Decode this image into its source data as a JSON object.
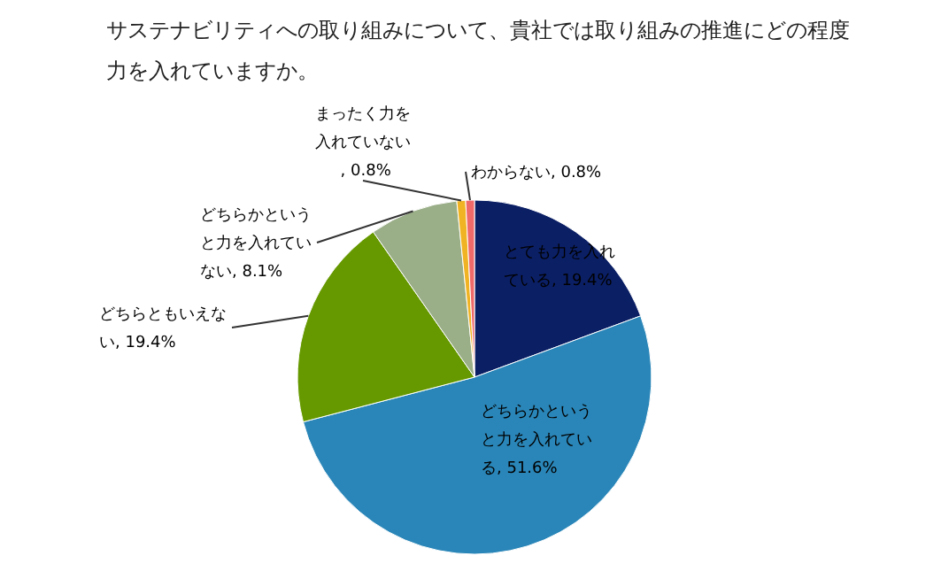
{
  "chart_data": {
    "type": "pie",
    "title": "サステナビリティへの取り組みについて、貴社では取り組みの推進にどの程度力を入れていますか。",
    "categories": [
      "とても力を入れている",
      "どちらかというと力を入れている",
      "どちらともいえない",
      "どちらかというと力を入れていない",
      "まったく力を入れていない",
      "わからない"
    ],
    "values": [
      19.4,
      51.6,
      19.4,
      8.1,
      0.8,
      0.8
    ],
    "colors": [
      "#0b1f65",
      "#2a86b8",
      "#669900",
      "#9aae88",
      "#f0b323",
      "#f06a6a"
    ],
    "value_labels": [
      ", 19.4%",
      ", 51.6%",
      ", 19.4%",
      ", 8.1%",
      ", 0.8%",
      ", 0.8%"
    ]
  }
}
